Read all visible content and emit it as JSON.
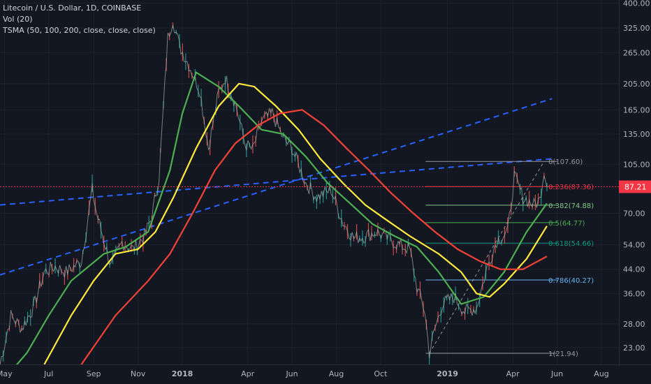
{
  "legend": {
    "symbol": "Litecoin / U.S. Dollar, 1D, COINBASE",
    "volume": "Vol (20)",
    "indicator": "TSMA (50, 100, 200, close, close, close)"
  },
  "price_tag": {
    "value": "87.21",
    "color": "#f23645"
  },
  "colors": {
    "background": "#131722",
    "candle_up": "#26a69a",
    "candle_down": "#ef5350",
    "ma50": "#4caf50",
    "ma100": "#ffeb3b",
    "ma200": "#f44336",
    "trend_channel": "#2962ff",
    "fib_text": "#d1d4dc"
  },
  "chart_data": {
    "type": "line",
    "title": "Litecoin / U.S. Dollar, 1D, COINBASE",
    "x_axis": {
      "labels": [
        "May",
        "Jul",
        "Sep",
        "Nov",
        "2018",
        "Apr",
        "Jun",
        "Aug",
        "Oct",
        "2019",
        "Apr",
        "Jun",
        "Aug"
      ],
      "label_dates": [
        "2017-05-01",
        "2017-07-01",
        "2017-09-01",
        "2017-11-01",
        "2018-01-01",
        "2018-04-01",
        "2018-06-01",
        "2018-08-01",
        "2018-10-01",
        "2019-01-01",
        "2019-04-01",
        "2019-06-01",
        "2019-08-01"
      ],
      "range": [
        "2017-04-25",
        "2019-08-25"
      ]
    },
    "y_axis": {
      "scale": "log",
      "tick_labels": [
        "400.00",
        "325.00",
        "265.00",
        "205.00",
        "165.00",
        "135.00",
        "105.00",
        "70.00",
        "54.00",
        "44.00",
        "36.00",
        "28.00",
        "23.00"
      ],
      "range": [
        20,
        410
      ]
    },
    "last_price": 87.21,
    "price_path": [
      [
        "2017-04-25",
        20
      ],
      [
        "2017-05-10",
        30
      ],
      [
        "2017-05-25",
        27
      ],
      [
        "2017-06-10",
        32
      ],
      [
        "2017-06-25",
        43
      ],
      [
        "2017-07-10",
        45
      ],
      [
        "2017-07-25",
        43
      ],
      [
        "2017-08-15",
        47
      ],
      [
        "2017-08-30",
        85
      ],
      [
        "2017-09-05",
        70
      ],
      [
        "2017-09-15",
        56
      ],
      [
        "2017-09-25",
        45
      ],
      [
        "2017-10-10",
        55
      ],
      [
        "2017-10-25",
        52
      ],
      [
        "2017-11-10",
        58
      ],
      [
        "2017-11-20",
        68
      ],
      [
        "2017-11-30",
        95
      ],
      [
        "2017-12-12",
        300
      ],
      [
        "2017-12-19",
        350
      ],
      [
        "2017-12-28",
        280
      ],
      [
        "2018-01-10",
        240
      ],
      [
        "2018-01-25",
        195
      ],
      [
        "2018-02-06",
        120
      ],
      [
        "2018-02-20",
        190
      ],
      [
        "2018-03-01",
        215
      ],
      [
        "2018-03-15",
        175
      ],
      [
        "2018-03-28",
        125
      ],
      [
        "2018-04-08",
        118
      ],
      [
        "2018-04-20",
        150
      ],
      [
        "2018-05-05",
        160
      ],
      [
        "2018-05-20",
        130
      ],
      [
        "2018-06-01",
        120
      ],
      [
        "2018-06-20",
        90
      ],
      [
        "2018-07-05",
        80
      ],
      [
        "2018-07-25",
        85
      ],
      [
        "2018-08-10",
        65
      ],
      [
        "2018-08-25",
        57
      ],
      [
        "2018-09-10",
        58
      ],
      [
        "2018-09-25",
        60
      ],
      [
        "2018-10-10",
        57
      ],
      [
        "2018-10-25",
        54
      ],
      [
        "2018-11-10",
        52
      ],
      [
        "2018-11-20",
        38
      ],
      [
        "2018-12-01",
        31
      ],
      [
        "2018-12-07",
        22
      ],
      [
        "2018-12-15",
        27
      ],
      [
        "2018-12-25",
        33
      ],
      [
        "2019-01-10",
        35
      ],
      [
        "2019-01-25",
        31
      ],
      [
        "2019-02-10",
        32
      ],
      [
        "2019-02-25",
        45
      ],
      [
        "2019-03-10",
        56
      ],
      [
        "2019-03-25",
        60
      ],
      [
        "2019-04-03",
        95
      ],
      [
        "2019-04-15",
        80
      ],
      [
        "2019-04-30",
        75
      ],
      [
        "2019-05-08",
        78
      ],
      [
        "2019-05-14",
        100
      ],
      [
        "2019-05-18",
        87
      ]
    ],
    "series": [
      {
        "name": "50",
        "color": "#4caf50",
        "points": [
          [
            "2017-04-25",
            17
          ],
          [
            "2017-06-01",
            22
          ],
          [
            "2017-07-01",
            30
          ],
          [
            "2017-08-01",
            40
          ],
          [
            "2017-09-15",
            50
          ],
          [
            "2017-10-15",
            53
          ],
          [
            "2017-11-15",
            60
          ],
          [
            "2017-12-15",
            100
          ],
          [
            "2018-01-01",
            160
          ],
          [
            "2018-01-20",
            225
          ],
          [
            "2018-02-20",
            200
          ],
          [
            "2018-03-20",
            170
          ],
          [
            "2018-04-20",
            140
          ],
          [
            "2018-05-20",
            135
          ],
          [
            "2018-06-20",
            112
          ],
          [
            "2018-07-20",
            90
          ],
          [
            "2018-08-20",
            76
          ],
          [
            "2018-09-20",
            64
          ],
          [
            "2018-10-20",
            58
          ],
          [
            "2018-11-20",
            53
          ],
          [
            "2018-12-20",
            43
          ],
          [
            "2019-01-20",
            33
          ],
          [
            "2019-02-20",
            35
          ],
          [
            "2019-03-20",
            43
          ],
          [
            "2019-04-20",
            60
          ],
          [
            "2019-05-18",
            76
          ]
        ]
      },
      {
        "name": "100",
        "color": "#ffeb3b",
        "points": [
          [
            "2017-06-25",
            20
          ],
          [
            "2017-08-01",
            30
          ],
          [
            "2017-09-01",
            40
          ],
          [
            "2017-10-01",
            50
          ],
          [
            "2017-11-01",
            52
          ],
          [
            "2017-11-25",
            60
          ],
          [
            "2017-12-20",
            80
          ],
          [
            "2018-01-20",
            120
          ],
          [
            "2018-02-20",
            170
          ],
          [
            "2018-03-20",
            205
          ],
          [
            "2018-04-10",
            200
          ],
          [
            "2018-05-10",
            170
          ],
          [
            "2018-06-10",
            140
          ],
          [
            "2018-07-10",
            110
          ],
          [
            "2018-08-10",
            90
          ],
          [
            "2018-09-10",
            75
          ],
          [
            "2018-10-10",
            66
          ],
          [
            "2018-11-10",
            58
          ],
          [
            "2018-12-20",
            50
          ],
          [
            "2019-01-20",
            43
          ],
          [
            "2019-02-10",
            36
          ],
          [
            "2019-02-28",
            35
          ],
          [
            "2019-03-20",
            39
          ],
          [
            "2019-04-20",
            48
          ],
          [
            "2019-05-18",
            63
          ]
        ]
      },
      {
        "name": "200",
        "color": "#f44336",
        "points": [
          [
            "2017-08-15",
            20
          ],
          [
            "2017-10-01",
            30
          ],
          [
            "2017-11-15",
            40
          ],
          [
            "2017-12-15",
            50
          ],
          [
            "2018-01-15",
            70
          ],
          [
            "2018-02-15",
            100
          ],
          [
            "2018-03-15",
            125
          ],
          [
            "2018-04-15",
            145
          ],
          [
            "2018-05-15",
            160
          ],
          [
            "2018-06-15",
            165
          ],
          [
            "2018-07-15",
            145
          ],
          [
            "2018-08-15",
            120
          ],
          [
            "2018-09-15",
            100
          ],
          [
            "2018-10-15",
            83
          ],
          [
            "2018-11-15",
            70
          ],
          [
            "2018-12-15",
            60
          ],
          [
            "2019-01-15",
            52
          ],
          [
            "2019-02-15",
            47
          ],
          [
            "2019-03-15",
            44
          ],
          [
            "2019-04-15",
            44
          ],
          [
            "2019-05-18",
            49
          ]
        ]
      }
    ],
    "channel_lines": [
      {
        "from": [
          "2017-04-25",
          42
        ],
        "to": [
          "2019-05-25",
          181
        ]
      },
      {
        "from": [
          "2017-04-25",
          75
        ],
        "to": [
          "2019-05-25",
          110
        ]
      }
    ],
    "fibonacci": {
      "x_start": "2018-12-02",
      "x_end": "2019-06-01",
      "label_x": "2019-05-20",
      "levels": [
        {
          "label": "0(107.60)",
          "value": 107.6,
          "color": "#9598a1"
        },
        {
          "label": "0.236(87.36)",
          "value": 87.36,
          "color": "#f23645"
        },
        {
          "label": "0.382(74.88)",
          "value": 74.88,
          "color": "#81c784"
        },
        {
          "label": "0.5(64.77)",
          "value": 64.77,
          "color": "#4caf50"
        },
        {
          "label": "0.618(54.66)",
          "value": 54.66,
          "color": "#089981"
        },
        {
          "label": "0.786(40.27)",
          "value": 40.27,
          "color": "#64b5f6"
        },
        {
          "label": "1(21.94)",
          "value": 21.94,
          "color": "#9598a1"
        }
      ]
    },
    "xlabel": "",
    "ylabel": "",
    "grid": true,
    "legend_position": "top-left"
  }
}
